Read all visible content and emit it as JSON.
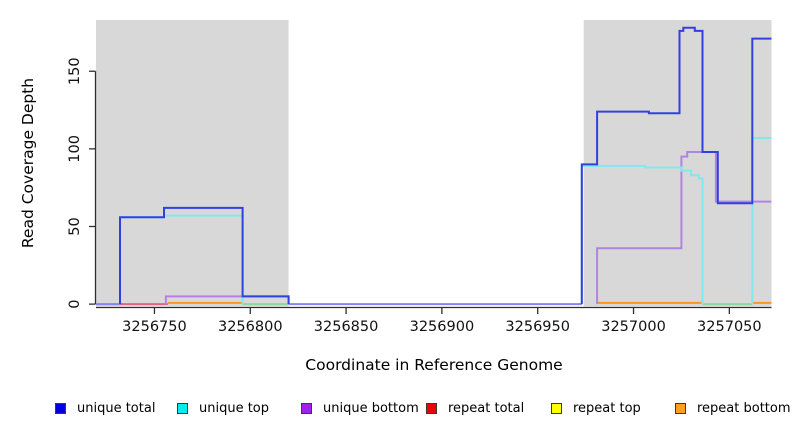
{
  "chart_data": {
    "type": "line",
    "subtype": "step-coverage",
    "title": "",
    "xlabel": "Coordinate in Reference Genome",
    "ylabel": "Read Coverage Depth",
    "xlim": [
      3256719.5,
      3257072
    ],
    "ylim": [
      0,
      183
    ],
    "ylim_render": [
      -2.5,
      183
    ],
    "grid": false,
    "legend_position": "bottom",
    "x_ticks": [
      3256750,
      3256800,
      3256850,
      3256900,
      3256950,
      3257000,
      3257050
    ],
    "x_tick_labels": [
      "3256750",
      "3256800",
      "3256850",
      "3256900",
      "3256950",
      "3257000",
      "3257050"
    ],
    "y_ticks": [
      0,
      50,
      100,
      150
    ],
    "y_tick_labels": [
      "0",
      "50",
      "100",
      "150"
    ],
    "shaded_regions": [
      {
        "name": "repeat-region-left",
        "x0": 3256719.5,
        "x1": 3256820,
        "color": "#d8d8d8"
      },
      {
        "name": "repeat-region-right",
        "x0": 3256974,
        "x1": 3257072,
        "color": "#d8d8d8"
      }
    ],
    "series": [
      {
        "name": "unique total",
        "color": "#3240df",
        "width": 2,
        "segments": [
          [
            [
              3256732,
              0
            ],
            [
              3256732,
              56
            ],
            [
              3256755,
              56
            ],
            [
              3256755,
              62
            ],
            [
              3256796,
              62
            ],
            [
              3256796,
              5
            ],
            [
              3256820,
              5
            ],
            [
              3256820,
              0
            ]
          ],
          [
            [
              3256973,
              0
            ],
            [
              3256973,
              90
            ],
            [
              3256981,
              90
            ],
            [
              3256981,
              124
            ],
            [
              3257008,
              124
            ],
            [
              3257008,
              123
            ],
            [
              3257024,
              123
            ],
            [
              3257024,
              176
            ],
            [
              3257026,
              176
            ],
            [
              3257026,
              178
            ],
            [
              3257032,
              178
            ],
            [
              3257032,
              176
            ],
            [
              3257036,
              176
            ],
            [
              3257036,
              98
            ],
            [
              3257044,
              98
            ],
            [
              3257044,
              65
            ],
            [
              3257062,
              65
            ],
            [
              3257062,
              171
            ],
            [
              3257072,
              171
            ]
          ]
        ]
      },
      {
        "name": "unique top",
        "color": "#7fe9ee",
        "width": 2,
        "segments": [
          [
            [
              3256732,
              0
            ],
            [
              3256732,
              56
            ],
            [
              3256755,
              56
            ],
            [
              3256755,
              57
            ],
            [
              3256796,
              57
            ],
            [
              3256796,
              0
            ]
          ],
          [
            [
              3256973,
              0
            ],
            [
              3256973,
              89
            ],
            [
              3257006,
              89
            ],
            [
              3257006,
              88
            ],
            [
              3257025,
              88
            ],
            [
              3257025,
              86
            ],
            [
              3257030,
              86
            ],
            [
              3257030,
              83
            ],
            [
              3257034,
              83
            ],
            [
              3257034,
              81
            ],
            [
              3257036,
              81
            ],
            [
              3257036,
              0
            ]
          ],
          [
            [
              3257062,
              0
            ],
            [
              3257062,
              107
            ],
            [
              3257072,
              107
            ]
          ]
        ]
      },
      {
        "name": "unique bottom",
        "color": "#b184e4",
        "width": 2,
        "segments": [
          [
            [
              3256756,
              0
            ],
            [
              3256756,
              5
            ],
            [
              3256820,
              5
            ],
            [
              3256820,
              0
            ]
          ],
          [
            [
              3256981,
              0
            ],
            [
              3256981,
              36
            ],
            [
              3257025,
              36
            ],
            [
              3257025,
              95
            ],
            [
              3257028,
              95
            ],
            [
              3257028,
              98
            ],
            [
              3257043,
              98
            ],
            [
              3257043,
              66
            ],
            [
              3257072,
              66
            ]
          ]
        ]
      },
      {
        "name": "repeat total",
        "color": "#e05570",
        "width": 1.6,
        "segments": [
          [
            [
              3256732,
              0
            ],
            [
              3256757,
              0
            ]
          ]
        ]
      },
      {
        "name": "repeat top",
        "color": "#ffff00",
        "width": 1.6,
        "segments": []
      },
      {
        "name": "repeat bottom",
        "color": "#ff9425",
        "width": 2,
        "segments": [
          [
            [
              3256757,
              0.8
            ],
            [
              3256796,
              0.8
            ]
          ],
          [
            [
              3256981,
              0.8
            ],
            [
              3257036,
              0.8
            ]
          ],
          [
            [
              3257062,
              0.8
            ],
            [
              3257072,
              0.8
            ]
          ]
        ]
      }
    ],
    "overlap_artifacts": [
      {
        "name": "baseline-blend",
        "color": "#8585f0",
        "width": 2,
        "segments": [
          [
            [
              3256719.5,
              0
            ],
            [
              3256733,
              0
            ]
          ],
          [
            [
              3256820,
              0
            ],
            [
              3256973,
              0
            ]
          ]
        ]
      },
      {
        "name": "cyan-yellow-blend",
        "color": "#8fd69b",
        "width": 2,
        "segments": [
          [
            [
              3256796,
              0
            ],
            [
              3256820,
              0
            ]
          ],
          [
            [
              3257036,
              0
            ],
            [
              3257062,
              0
            ]
          ]
        ]
      }
    ]
  },
  "legend": {
    "items": [
      {
        "label": "unique total",
        "color": "#0000e0"
      },
      {
        "label": "unique top",
        "color": "#00eef2"
      },
      {
        "label": "unique bottom",
        "color": "#a020f0"
      },
      {
        "label": "repeat total",
        "color": "#ee0000"
      },
      {
        "label": "repeat top",
        "color": "#ffff00"
      },
      {
        "label": "repeat bottom",
        "color": "#ffa01e"
      }
    ]
  }
}
